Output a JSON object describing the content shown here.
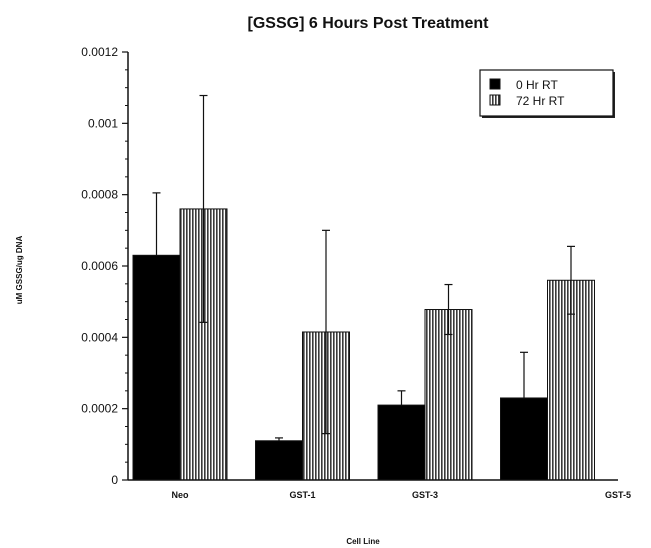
{
  "chart_data": {
    "type": "bar",
    "title": "[GSSG] 6 Hours Post Treatment",
    "xlabel": "Cell Line",
    "ylabel": "uM GSSG/ug DNA",
    "categories": [
      "Neo",
      "GST-1",
      "GST-3",
      "GST-5"
    ],
    "series": [
      {
        "name": "0 Hr RT",
        "values": [
          0.00063,
          0.00011,
          0.00021,
          0.00023
        ],
        "error": [
          0.000175,
          8e-06,
          4e-05,
          0.000128
        ],
        "color": "#000000",
        "pattern": "solid"
      },
      {
        "name": "72 Hr RT",
        "values": [
          0.00076,
          0.000415,
          0.000478,
          0.00056
        ],
        "error": [
          0.000318,
          0.000285,
          7e-05,
          9.5e-05
        ],
        "color": "#555555",
        "pattern": "vertical-stripes"
      }
    ],
    "ylim": [
      0,
      0.0012
    ],
    "yticks": [
      "0",
      "0.0002",
      "0.0004",
      "0.0006",
      "0.0008",
      "0.001",
      "0.0012"
    ],
    "legend_position": "top-right",
    "grid": false
  }
}
